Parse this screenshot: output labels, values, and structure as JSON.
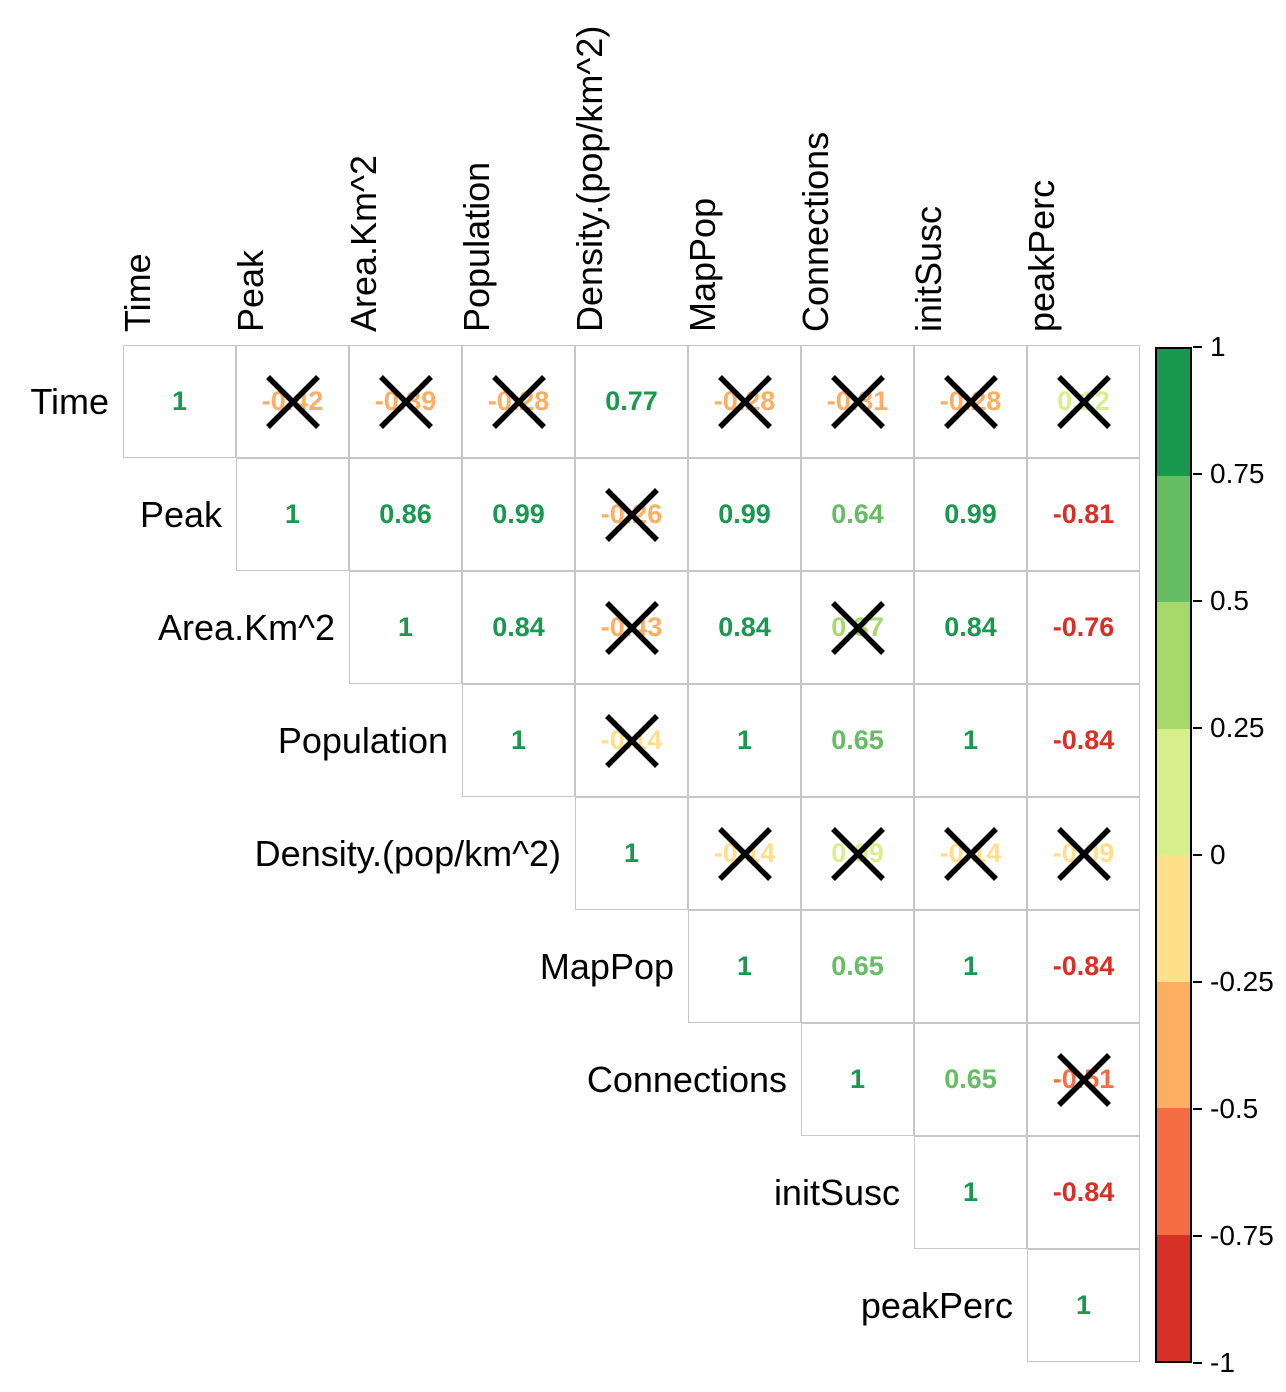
{
  "chart_data": {
    "type": "heatmap",
    "subtype": "correlation-matrix-upper-triangle",
    "title": "",
    "variables": [
      "Time",
      "Peak",
      "Area.Km^2",
      "Population",
      "Density.(pop/km^2)",
      "MapPop",
      "Connections",
      "initSusc",
      "peakPerc"
    ],
    "value_range": [
      -1,
      1
    ],
    "rows": [
      {
        "variable": "Time",
        "cells": [
          {
            "col": "Time",
            "value": 1,
            "label": "1",
            "crossed": false
          },
          {
            "col": "Peak",
            "value": -0.42,
            "label": "-0.42",
            "crossed": true
          },
          {
            "col": "Area.Km^2",
            "value": -0.39,
            "label": "-0.39",
            "crossed": true
          },
          {
            "col": "Population",
            "value": -0.28,
            "label": "-0.28",
            "crossed": true
          },
          {
            "col": "Density.(pop/km^2)",
            "value": 0.77,
            "label": "0.77",
            "crossed": false
          },
          {
            "col": "MapPop",
            "value": -0.28,
            "label": "-0.28",
            "crossed": true
          },
          {
            "col": "Connections",
            "value": -0.31,
            "label": "-0.31",
            "crossed": true
          },
          {
            "col": "initSusc",
            "value": -0.28,
            "label": "-0.28",
            "crossed": true
          },
          {
            "col": "peakPerc",
            "value": 0.12,
            "label": "0.12",
            "crossed": true
          }
        ]
      },
      {
        "variable": "Peak",
        "cells": [
          {
            "col": "Peak",
            "value": 1,
            "label": "1",
            "crossed": false
          },
          {
            "col": "Area.Km^2",
            "value": 0.86,
            "label": "0.86",
            "crossed": false
          },
          {
            "col": "Population",
            "value": 0.99,
            "label": "0.99",
            "crossed": false
          },
          {
            "col": "Density.(pop/km^2)",
            "value": -0.26,
            "label": "-0.26",
            "crossed": true
          },
          {
            "col": "MapPop",
            "value": 0.99,
            "label": "0.99",
            "crossed": false
          },
          {
            "col": "Connections",
            "value": 0.64,
            "label": "0.64",
            "crossed": false
          },
          {
            "col": "initSusc",
            "value": 0.99,
            "label": "0.99",
            "crossed": false
          },
          {
            "col": "peakPerc",
            "value": -0.81,
            "label": "-0.81",
            "crossed": false
          }
        ]
      },
      {
        "variable": "Area.Km^2",
        "cells": [
          {
            "col": "Area.Km^2",
            "value": 1,
            "label": "1",
            "crossed": false
          },
          {
            "col": "Population",
            "value": 0.84,
            "label": "0.84",
            "crossed": false
          },
          {
            "col": "Density.(pop/km^2)",
            "value": -0.43,
            "label": "-0.43",
            "crossed": true
          },
          {
            "col": "MapPop",
            "value": 0.84,
            "label": "0.84",
            "crossed": false
          },
          {
            "col": "Connections",
            "value": 0.37,
            "label": "0.37",
            "crossed": true
          },
          {
            "col": "initSusc",
            "value": 0.84,
            "label": "0.84",
            "crossed": false
          },
          {
            "col": "peakPerc",
            "value": -0.76,
            "label": "-0.76",
            "crossed": false
          }
        ]
      },
      {
        "variable": "Population",
        "cells": [
          {
            "col": "Population",
            "value": 1,
            "label": "1",
            "crossed": false
          },
          {
            "col": "Density.(pop/km^2)",
            "value": -0.14,
            "label": "-0.14",
            "crossed": true
          },
          {
            "col": "MapPop",
            "value": 1,
            "label": "1",
            "crossed": false
          },
          {
            "col": "Connections",
            "value": 0.65,
            "label": "0.65",
            "crossed": false
          },
          {
            "col": "initSusc",
            "value": 1,
            "label": "1",
            "crossed": false
          },
          {
            "col": "peakPerc",
            "value": -0.84,
            "label": "-0.84",
            "crossed": false
          }
        ]
      },
      {
        "variable": "Density.(pop/km^2)",
        "cells": [
          {
            "col": "Density.(pop/km^2)",
            "value": 1,
            "label": "1",
            "crossed": false
          },
          {
            "col": "MapPop",
            "value": -0.14,
            "label": "-0.14",
            "crossed": true
          },
          {
            "col": "Connections",
            "value": 0.09,
            "label": "0.09",
            "crossed": true
          },
          {
            "col": "initSusc",
            "value": -0.14,
            "label": "-0.14",
            "crossed": true
          },
          {
            "col": "peakPerc",
            "value": -0.09,
            "label": "-0.09",
            "crossed": true
          }
        ]
      },
      {
        "variable": "MapPop",
        "cells": [
          {
            "col": "MapPop",
            "value": 1,
            "label": "1",
            "crossed": false
          },
          {
            "col": "Connections",
            "value": 0.65,
            "label": "0.65",
            "crossed": false
          },
          {
            "col": "initSusc",
            "value": 1,
            "label": "1",
            "crossed": false
          },
          {
            "col": "peakPerc",
            "value": -0.84,
            "label": "-0.84",
            "crossed": false
          }
        ]
      },
      {
        "variable": "Connections",
        "cells": [
          {
            "col": "Connections",
            "value": 1,
            "label": "1",
            "crossed": false
          },
          {
            "col": "initSusc",
            "value": 0.65,
            "label": "0.65",
            "crossed": false
          },
          {
            "col": "peakPerc",
            "value": -0.51,
            "label": "-0.51",
            "crossed": true
          }
        ]
      },
      {
        "variable": "initSusc",
        "cells": [
          {
            "col": "initSusc",
            "value": 1,
            "label": "1",
            "crossed": false
          },
          {
            "col": "peakPerc",
            "value": -0.84,
            "label": "-0.84",
            "crossed": false
          }
        ]
      },
      {
        "variable": "peakPerc",
        "cells": [
          {
            "col": "peakPerc",
            "value": 1,
            "label": "1",
            "crossed": false
          }
        ]
      }
    ],
    "colorbar": {
      "range": [
        -1,
        1
      ],
      "tick_labels_top_to_bottom": [
        "1",
        "0.75",
        "0.5",
        "0.25",
        "0",
        "-0.25",
        "-0.5",
        "-0.75",
        "-1"
      ],
      "colors_bottom_to_top": [
        "#D73027",
        "#F46D43",
        "#FDAE61",
        "#FEE08B",
        "#D9EF8B",
        "#A6D96A",
        "#66BD63",
        "#1A9850"
      ]
    },
    "style_colors": {
      "grid_line": "#c6c6c6",
      "cross_mark": "#000000",
      "label_text": "#000000"
    },
    "legend_position": "right",
    "grid": true
  }
}
